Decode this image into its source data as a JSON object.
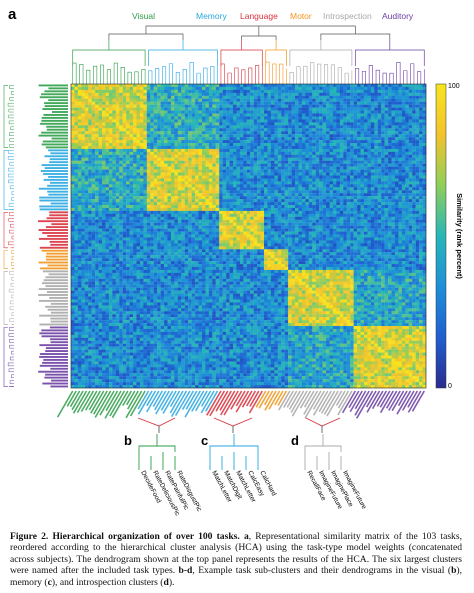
{
  "figure": {
    "panel_a": "a",
    "panel_b": "b",
    "panel_c": "c",
    "panel_d": "d",
    "clusters": [
      {
        "name": "Visual",
        "color": "#2e9e48"
      },
      {
        "name": "Memory",
        "color": "#2aa7e0"
      },
      {
        "name": "Language",
        "color": "#d8323e"
      },
      {
        "name": "Motor",
        "color": "#f0961e"
      },
      {
        "name": "Introspection",
        "color": "#a8a8a8"
      },
      {
        "name": "Auditory",
        "color": "#6b3fa3"
      }
    ],
    "colorbar": {
      "max_label": "100",
      "min_label": "0",
      "title": "Similarity (rank percent)",
      "colors": [
        "#2b2c8f",
        "#1f5fd0",
        "#1f8fd9",
        "#27b6b8",
        "#8fcf5a",
        "#f2c32d",
        "#f7e41f"
      ]
    },
    "subclusters": {
      "b": [
        "DecideFood",
        "RateDeliciousPic",
        "RatePainfulPic",
        "RateDisgustPic"
      ],
      "c": [
        "MatchLetter",
        "MatchDigit",
        "MatchLetter",
        "CalcEasy",
        "CalcHard"
      ],
      "d": [
        "RecallFace",
        "ImagineFuture",
        "ImaginePlace",
        "ImagineFuture"
      ]
    }
  },
  "caption": {
    "bold": "Figure 2. Hierarchical organization of over 100 tasks.",
    "a_letter": "a",
    "a_text": ", Representational similarity matrix of the 103 tasks, reordered according to the hierarchical cluster analysis (HCA) using the task-type model weights (concatenated across subjects). The dendrogram shown at the top panel represents the results of the HCA. The six largest clusters were named after the included task types. ",
    "bd_letter": "b-d",
    "bd_text": ", Example task sub-clusters and their dendrograms in the visual (",
    "b_letter": "b",
    "mid_text": "), memory (",
    "c_letter": "c",
    "and_text": "), and introspection clusters (",
    "d_letter": "d",
    "end_text": ")."
  }
}
